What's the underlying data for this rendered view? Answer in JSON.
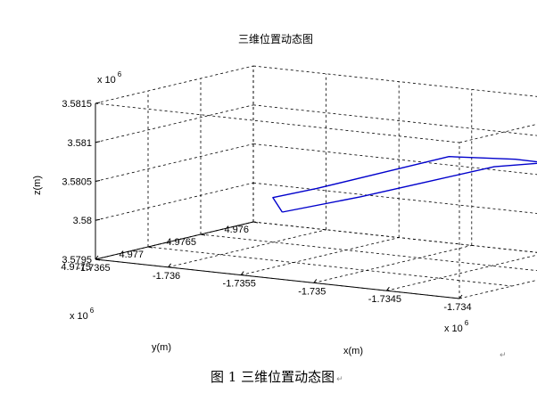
{
  "chart_data": {
    "type": "line",
    "title": "三维位置动态图",
    "xlabel": "x(m)",
    "ylabel": "y(m)",
    "zlabel": "z(m)",
    "x_exponent": "x 10",
    "x_exponent_power": "6",
    "y_exponent": "x 10",
    "y_exponent_power": "6",
    "z_exponent": "x 10",
    "z_exponent_power": "6",
    "xlim": [
      -1.7365,
      -1.734
    ],
    "ylim": [
      4.976,
      4.9775
    ],
    "zlim": [
      3.5795,
      3.5815
    ],
    "x_ticks": [
      "-1.7365",
      "-1.736",
      "-1.7355",
      "-1.735",
      "-1.7345",
      "-1.734"
    ],
    "y_ticks": [
      "4.976",
      "4.9765",
      "4.977",
      "4.9775"
    ],
    "z_ticks": [
      "3.5795",
      "3.58",
      "3.5805",
      "3.581",
      "3.5815"
    ],
    "grid": true,
    "series": [
      {
        "color": "#0000cc",
        "points": [
          {
            "x": -1.73628,
            "y": 4.97603,
            "z": 3.57968
          },
          {
            "x": -1.73564,
            "y": 4.97617,
            "z": 3.58005
          },
          {
            "x": -1.73508,
            "y": 4.97631,
            "z": 3.5804
          },
          {
            "x": -1.73452,
            "y": 4.97645,
            "z": 3.58075
          },
          {
            "x": -1.73405,
            "y": 4.97662,
            "z": 3.58095
          },
          {
            "x": -1.73418,
            "y": 4.97672,
            "z": 3.581
          },
          {
            "x": -1.73478,
            "y": 4.97652,
            "z": 3.58085
          },
          {
            "x": -1.73538,
            "y": 4.97634,
            "z": 3.58046
          },
          {
            "x": -1.73598,
            "y": 4.97612,
            "z": 3.58007
          },
          {
            "x": -1.73638,
            "y": 4.97598,
            "z": 3.57983
          },
          {
            "x": -1.73628,
            "y": 4.97603,
            "z": 3.57968
          }
        ]
      }
    ]
  },
  "caption": {
    "text": "图 1 三维位置动态图",
    "mark": "↵"
  },
  "corner_mark": "↵"
}
